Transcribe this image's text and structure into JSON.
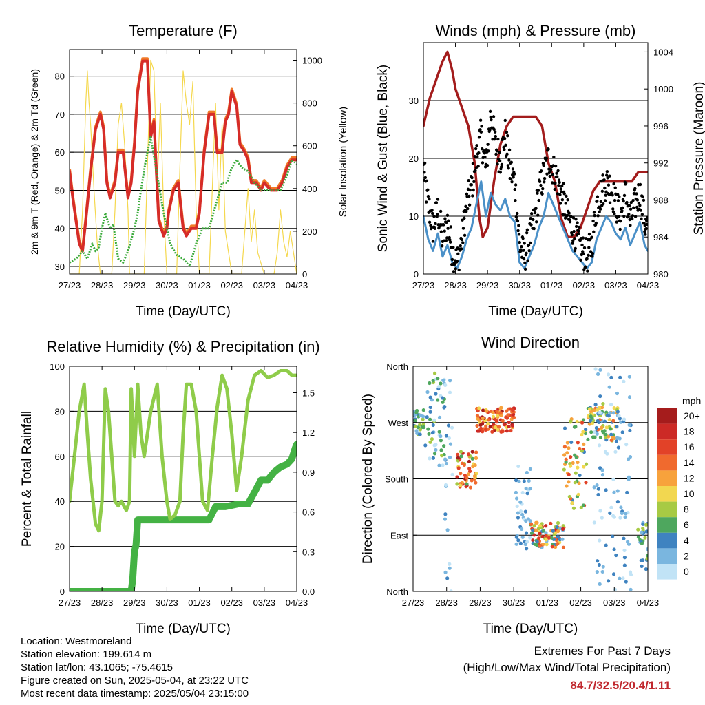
{
  "footer": {
    "location": "Location: Westmoreland",
    "elevation": "Station elevation: 199.614 m",
    "latlon": "Station lat/lon: 43.1065; -75.4615",
    "created": "Figure created on Sun, 2025-05-04, at 23:22 UTC",
    "recent": "Most recent data timestamp: 2025/05/04 23:15:00"
  },
  "extremes": {
    "title": "Extremes For Past 7 Days",
    "subtitle": "(High/Low/Max Wind/Total Precipitation)",
    "values": "84.7/32.5/20.4/1.11"
  },
  "colors": {
    "temp2m": "#d62c28",
    "temp9m": "#f07a28",
    "dewpoint": "#3cab3c",
    "solar": "#f5d84e",
    "wind": "#4a90c8",
    "gust": "#000000",
    "pressure": "#a31c1c",
    "rh": "#8fcc4a",
    "precip": "#44b244"
  },
  "chart_data": [
    {
      "type": "line",
      "title": "Temperature (F)",
      "xlabel": "Time (Day/UTC)",
      "ylabel": "2m & 9m T (Red, Orange) & 2m Td (Green)",
      "y2label": "Solar Insolation (Yellow)",
      "xticks": [
        "27/23",
        "28/23",
        "29/23",
        "30/23",
        "01/23",
        "02/23",
        "03/23",
        "04/23"
      ],
      "xlim": [
        0,
        7
      ],
      "ylim": [
        28,
        87
      ],
      "yticks": [
        30,
        40,
        50,
        60,
        70,
        80
      ],
      "y2lim": [
        0,
        1050
      ],
      "y2ticks": [
        0,
        200,
        400,
        600,
        800,
        1000
      ],
      "grid": true,
      "series": [
        {
          "color": "temp2m",
          "x": [
            0,
            0.1,
            0.2,
            0.3,
            0.4,
            0.5,
            0.65,
            0.8,
            0.95,
            1.05,
            1.15,
            1.25,
            1.4,
            1.5,
            1.65,
            1.8,
            1.9,
            2.0,
            2.1,
            2.25,
            2.4,
            2.5,
            2.6,
            2.75,
            2.9,
            3.0,
            3.05,
            3.2,
            3.35,
            3.5,
            3.6,
            3.75,
            3.9,
            4.0,
            4.15,
            4.3,
            4.45,
            4.55,
            4.7,
            4.8,
            4.9,
            5.0,
            5.15,
            5.25,
            5.4,
            5.5,
            5.6,
            5.75,
            5.9,
            6.0,
            6.2,
            6.4,
            6.55,
            6.7,
            6.85,
            7.0
          ],
          "y": [
            55,
            48,
            42,
            36,
            34,
            42,
            55,
            66,
            70,
            66,
            52,
            48,
            52,
            60,
            60,
            48,
            52,
            62,
            76,
            84,
            84,
            64,
            68,
            42,
            38,
            40,
            44,
            50,
            52,
            40,
            38,
            40,
            40,
            44,
            60,
            70,
            70,
            60,
            60,
            68,
            70,
            76,
            72,
            62,
            60,
            58,
            52,
            52,
            50,
            52,
            50,
            50,
            52,
            56,
            58,
            58
          ]
        },
        {
          "color": "dewpoint",
          "x": [
            0,
            0.2,
            0.4,
            0.55,
            0.7,
            0.8,
            0.9,
            1.0,
            1.1,
            1.25,
            1.35,
            1.5,
            1.65,
            1.8,
            2.0,
            2.1,
            2.2,
            2.35,
            2.5,
            2.7,
            2.9,
            3.1,
            3.3,
            3.5,
            3.7,
            3.9,
            4.0,
            4.1,
            4.3,
            4.5,
            4.7,
            4.85,
            5.0,
            5.15,
            5.3,
            5.5,
            5.7,
            5.9,
            6.1,
            6.3,
            6.5,
            6.7,
            6.85,
            7.0
          ],
          "y": [
            31,
            32,
            34,
            32,
            36,
            34,
            35,
            40,
            44,
            40,
            41,
            32,
            31,
            34,
            40,
            44,
            50,
            58,
            64,
            54,
            44,
            36,
            33,
            32,
            30,
            36,
            38,
            40,
            40,
            46,
            52,
            52,
            56,
            58,
            56,
            55,
            52,
            50,
            50,
            50,
            50,
            54,
            58,
            57
          ]
        },
        {
          "color": "solar",
          "axis": "y2",
          "x": [
            0,
            0.3,
            0.4,
            0.5,
            0.55,
            0.6,
            0.65,
            0.75,
            0.85,
            0.95,
            1.0,
            1.1,
            1.3,
            1.4,
            1.5,
            1.6,
            1.7,
            1.8,
            1.85,
            2.0,
            2.3,
            2.4,
            2.5,
            2.6,
            2.65,
            2.7,
            2.8,
            2.9,
            3.0,
            3.3,
            3.4,
            3.5,
            3.6,
            3.7,
            3.8,
            3.9,
            4.0,
            4.3,
            4.4,
            4.5,
            4.6,
            4.7,
            4.8,
            4.9,
            5.0,
            5.3,
            5.4,
            5.5,
            5.6,
            5.7,
            5.8,
            5.9,
            6.0,
            6.3,
            6.4,
            6.5,
            6.6,
            6.7,
            6.8,
            6.9,
            7.0
          ],
          "y": [
            0,
            0,
            300,
            800,
            950,
            800,
            700,
            400,
            150,
            0,
            0,
            0,
            0,
            300,
            700,
            800,
            600,
            300,
            0,
            0,
            0,
            500,
            1000,
            950,
            700,
            400,
            800,
            300,
            0,
            0,
            500,
            950,
            800,
            700,
            900,
            300,
            0,
            0,
            400,
            800,
            300,
            700,
            200,
            100,
            0,
            0,
            200,
            400,
            150,
            300,
            100,
            50,
            0,
            0,
            100,
            300,
            150,
            80,
            200,
            100,
            0
          ]
        }
      ]
    },
    {
      "type": "line",
      "title": "Winds (mph) & Pressure (mb)",
      "xlabel": "Time (Day/UTC)",
      "ylabel": "Sonic Wind & Gust (Blue, Black)",
      "y2label": "Station Pressure (Maroon)",
      "xticks": [
        "27/23",
        "28/23",
        "29/23",
        "30/23",
        "01/23",
        "02/23",
        "03/23",
        "04/23"
      ],
      "xlim": [
        0,
        7
      ],
      "ylim": [
        0,
        40
      ],
      "yticks": [
        0,
        10,
        20,
        30
      ],
      "y2lim": [
        980,
        1005
      ],
      "y2ticks": [
        980,
        984,
        988,
        992,
        996,
        1000,
        1004
      ],
      "grid": true,
      "series": [
        {
          "color": "pressure",
          "axis": "y2",
          "x": [
            0,
            0.2,
            0.4,
            0.6,
            0.75,
            0.9,
            1.0,
            1.2,
            1.4,
            1.6,
            1.75,
            1.85,
            2.0,
            2.2,
            2.4,
            2.6,
            2.8,
            3.0,
            3.3,
            3.5,
            3.7,
            3.9,
            4.1,
            4.3,
            4.5,
            4.7,
            4.9,
            5.1,
            5.3,
            5.5,
            5.7,
            5.9,
            6.1,
            6.3,
            6.5,
            6.7,
            6.85,
            7.0
          ],
          "y": [
            996,
            999,
            1001,
            1003,
            1004,
            1002,
            1000,
            998,
            996,
            992,
            986,
            984,
            985,
            990,
            994,
            996,
            997,
            997,
            997,
            997,
            996,
            992,
            990,
            986,
            984,
            984,
            985,
            987,
            989,
            990,
            990,
            990,
            990,
            990,
            990,
            991,
            991,
            991
          ]
        },
        {
          "color": "wind",
          "x": [
            0,
            0.15,
            0.3,
            0.45,
            0.6,
            0.75,
            0.9,
            1.05,
            1.2,
            1.35,
            1.5,
            1.65,
            1.8,
            1.95,
            2.1,
            2.25,
            2.4,
            2.55,
            2.7,
            2.85,
            3.0,
            3.15,
            3.3,
            3.45,
            3.6,
            3.75,
            3.9,
            4.05,
            4.2,
            4.35,
            4.5,
            4.65,
            4.8,
            4.95,
            5.1,
            5.25,
            5.4,
            5.55,
            5.7,
            5.85,
            6.0,
            6.15,
            6.3,
            6.45,
            6.6,
            6.75,
            6.9,
            7.0
          ],
          "y": [
            10,
            6,
            4,
            7,
            3,
            5,
            2,
            1,
            3,
            6,
            8,
            12,
            16,
            10,
            14,
            12,
            11,
            13,
            10,
            9,
            2,
            1,
            3,
            5,
            8,
            10,
            14,
            12,
            10,
            8,
            6,
            4,
            3,
            2,
            1,
            2,
            6,
            8,
            10,
            9,
            7,
            6,
            8,
            5,
            7,
            9,
            5,
            4
          ]
        },
        {
          "color": "gust",
          "x": [
            0,
            0.15,
            0.3,
            0.45,
            0.6,
            0.75,
            0.9,
            1.05,
            1.2,
            1.35,
            1.5,
            1.65,
            1.8,
            1.95,
            2.1,
            2.25,
            2.4,
            2.55,
            2.7,
            2.85,
            3.0,
            3.15,
            3.3,
            3.45,
            3.6,
            3.75,
            3.9,
            4.05,
            4.2,
            4.35,
            4.5,
            4.65,
            4.8,
            4.95,
            5.1,
            5.25,
            5.4,
            5.55,
            5.7,
            5.85,
            6.0,
            6.15,
            6.3,
            6.45,
            6.6,
            6.75,
            6.9,
            7.0
          ],
          "y": [
            18,
            12,
            8,
            11,
            6,
            9,
            4,
            2,
            6,
            12,
            15,
            20,
            24,
            18,
            28,
            22,
            20,
            24,
            18,
            16,
            5,
            3,
            6,
            9,
            14,
            17,
            20,
            18,
            16,
            13,
            10,
            8,
            6,
            4,
            3,
            5,
            12,
            14,
            16,
            15,
            12,
            10,
            14,
            9,
            12,
            14,
            9,
            7
          ]
        }
      ]
    },
    {
      "type": "line",
      "title": "Relative Humidity (%) & Precipitation (in)",
      "xlabel": "Time (Day/UTC)",
      "ylabel": "Percent & Total Rainfall",
      "xticks": [
        "27/23",
        "28/23",
        "29/23",
        "30/23",
        "01/23",
        "02/23",
        "03/23",
        "04/23"
      ],
      "xlim": [
        0,
        7
      ],
      "ylim": [
        0,
        100
      ],
      "yticks": [
        0,
        20,
        40,
        60,
        80,
        100
      ],
      "y2lim": [
        0,
        1.7
      ],
      "y2ticks": [
        "0.0",
        "0.3",
        "0.6",
        "0.9",
        "1.2",
        "1.5"
      ],
      "grid": true,
      "series": [
        {
          "color": "rh",
          "x": [
            0,
            0.15,
            0.3,
            0.45,
            0.55,
            0.65,
            0.8,
            0.9,
            1.0,
            1.1,
            1.2,
            1.3,
            1.4,
            1.5,
            1.6,
            1.75,
            1.85,
            1.9,
            2.0,
            2.1,
            2.2,
            2.3,
            2.5,
            2.7,
            2.85,
            3.0,
            3.1,
            3.25,
            3.4,
            3.5,
            3.6,
            3.75,
            3.9,
            4.0,
            4.1,
            4.25,
            4.4,
            4.55,
            4.7,
            4.85,
            5.0,
            5.15,
            5.3,
            5.5,
            5.7,
            5.9,
            6.1,
            6.3,
            6.5,
            6.7,
            6.85,
            7.0
          ],
          "y": [
            40,
            60,
            80,
            92,
            70,
            50,
            30,
            27,
            40,
            90,
            80,
            60,
            40,
            38,
            40,
            36,
            40,
            90,
            60,
            92,
            70,
            60,
            80,
            92,
            60,
            40,
            32,
            34,
            40,
            70,
            92,
            92,
            80,
            60,
            40,
            36,
            60,
            82,
            96,
            90,
            70,
            45,
            60,
            85,
            96,
            98,
            95,
            96,
            98,
            98,
            96,
            96
          ]
        },
        {
          "color": "precip",
          "axis": "y2",
          "x": [
            0,
            0.5,
            1.0,
            1.5,
            1.9,
            1.95,
            2.0,
            2.05,
            2.1,
            2.5,
            3.0,
            3.5,
            4.0,
            4.3,
            4.5,
            4.8,
            5.0,
            5.2,
            5.5,
            5.7,
            5.9,
            6.1,
            6.3,
            6.5,
            6.7,
            6.85,
            6.95,
            7.0
          ],
          "y": [
            0,
            0,
            0,
            0,
            0,
            0.1,
            0.3,
            0.35,
            0.54,
            0.54,
            0.54,
            0.54,
            0.54,
            0.54,
            0.64,
            0.64,
            0.65,
            0.66,
            0.66,
            0.75,
            0.84,
            0.84,
            0.9,
            0.94,
            0.96,
            1.0,
            1.08,
            1.11
          ]
        }
      ]
    },
    {
      "type": "scatter",
      "title": "Wind Direction",
      "xlabel": "Time (Day/UTC)",
      "ylabel": "Direction (Colored By Speed)",
      "xticks": [
        "27/23",
        "28/23",
        "29/23",
        "30/23",
        "01/23",
        "02/23",
        "03/23",
        "04/23"
      ],
      "xlim": [
        0,
        7
      ],
      "ylim": [
        0,
        360
      ],
      "yticks": [
        {
          "v": 0,
          "label": "North"
        },
        {
          "v": 90,
          "label": "East"
        },
        {
          "v": 180,
          "label": "South"
        },
        {
          "v": 270,
          "label": "West"
        },
        {
          "v": 360,
          "label": "North"
        }
      ],
      "grid": true,
      "colorbar": {
        "title": "mph",
        "labels": [
          "20+",
          "18",
          "16",
          "14",
          "12",
          "10",
          "8",
          "6",
          "4",
          "2",
          "0"
        ],
        "colors": [
          "#a51c1c",
          "#cc2a26",
          "#e24228",
          "#f06a2e",
          "#f7a23c",
          "#f2d750",
          "#a7ca44",
          "#4ea75e",
          "#3f83c0",
          "#7ab6df",
          "#c1e3f6"
        ]
      },
      "clusters": [
        {
          "x0": 0.0,
          "x1": 0.35,
          "dir0": 250,
          "dir1": 290,
          "spd0": 2,
          "spd1": 8
        },
        {
          "x0": 0.35,
          "x1": 0.95,
          "dir0": 200,
          "dir1": 350,
          "spd0": 0,
          "spd1": 8
        },
        {
          "x0": 0.95,
          "x1": 1.2,
          "dir0": 0,
          "dir1": 360,
          "spd0": 0,
          "spd1": 4
        },
        {
          "x0": 1.3,
          "x1": 1.9,
          "dir0": 165,
          "dir1": 225,
          "spd0": 6,
          "spd1": 20
        },
        {
          "x0": 1.9,
          "x1": 3.05,
          "dir0": 255,
          "dir1": 295,
          "spd0": 10,
          "spd1": 20
        },
        {
          "x0": 3.05,
          "x1": 3.5,
          "dir0": 60,
          "dir1": 200,
          "spd0": 0,
          "spd1": 4
        },
        {
          "x0": 3.5,
          "x1": 4.5,
          "dir0": 70,
          "dir1": 110,
          "spd0": 2,
          "spd1": 18
        },
        {
          "x0": 4.5,
          "x1": 5.2,
          "dir0": 130,
          "dir1": 280,
          "spd0": 4,
          "spd1": 16
        },
        {
          "x0": 5.2,
          "x1": 6.1,
          "dir0": 240,
          "dir1": 300,
          "spd0": 2,
          "spd1": 14
        },
        {
          "x0": 5.4,
          "x1": 6.5,
          "dir0": 0,
          "dir1": 360,
          "spd0": 0,
          "spd1": 4
        },
        {
          "x0": 6.7,
          "x1": 7.0,
          "dir0": 30,
          "dir1": 110,
          "spd0": 2,
          "spd1": 8
        }
      ]
    }
  ]
}
